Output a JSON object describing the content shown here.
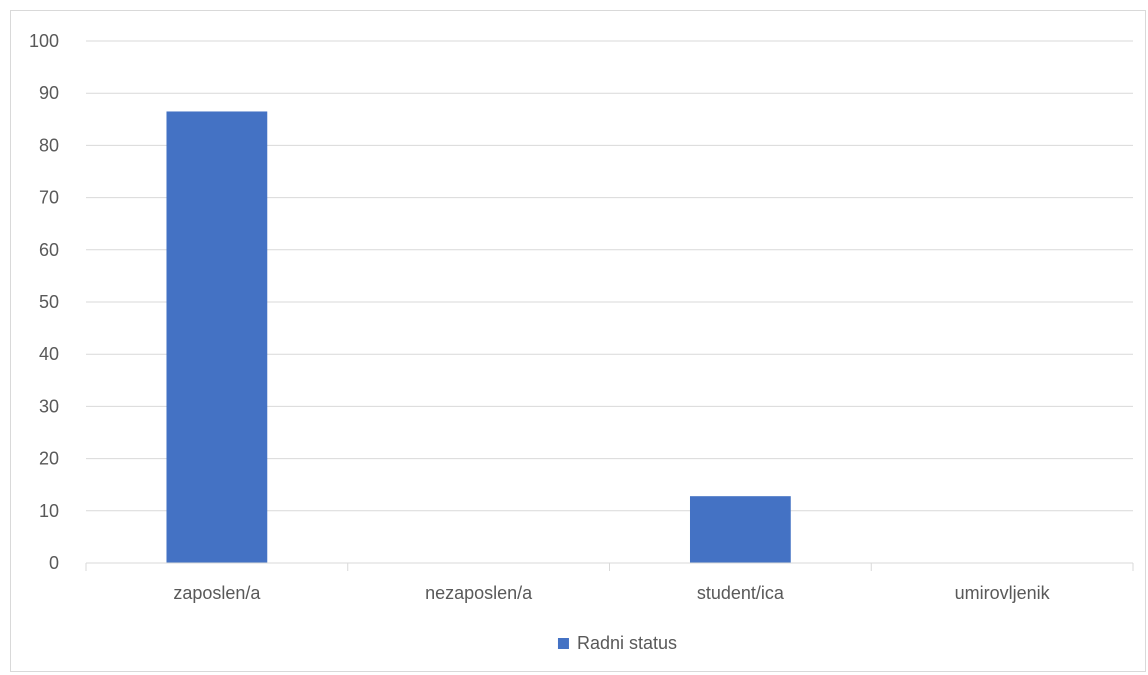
{
  "chart_data": {
    "type": "bar",
    "categories": [
      "zaposlen/a",
      "nezaposlen/a",
      "student/ica",
      "umirovljenik"
    ],
    "series": [
      {
        "name": "Radni status",
        "values": [
          86.5,
          0,
          12.8,
          0
        ],
        "color": "#4472c4"
      }
    ],
    "xlabel": "",
    "ylabel": "",
    "ylim": [
      0,
      100
    ],
    "ytick_step": 10,
    "grid": true,
    "legend": "bottom"
  },
  "colors": {
    "gridline": "#d9d9d9",
    "axis_text": "#595959",
    "frame_border": "#d9d9d9"
  }
}
